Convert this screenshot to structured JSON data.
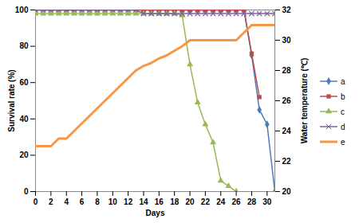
{
  "chart_data": {
    "type": "line",
    "x_label": "Days",
    "y_label": "Survival rate (%)",
    "y2_label": "Water temperature (℃)",
    "x": [
      0,
      1,
      2,
      3,
      4,
      5,
      6,
      7,
      8,
      9,
      10,
      11,
      12,
      13,
      14,
      15,
      16,
      17,
      18,
      19,
      20,
      21,
      22,
      23,
      24,
      25,
      26,
      27,
      28,
      29,
      30,
      31
    ],
    "xlim": [
      0,
      31
    ],
    "xticks": [
      0,
      2,
      4,
      6,
      8,
      10,
      12,
      14,
      16,
      18,
      20,
      22,
      24,
      26,
      28,
      30
    ],
    "ylim": [
      0,
      100
    ],
    "yticks": [
      0,
      20,
      40,
      60,
      80,
      100
    ],
    "y2lim": [
      20,
      32
    ],
    "y2ticks": [
      20,
      22,
      24,
      26,
      28,
      30,
      32
    ],
    "legend": "right",
    "series": [
      {
        "name": "a",
        "color": "#4a7ebb",
        "marker": "diamond",
        "values": [
          100,
          100,
          100,
          100,
          100,
          100,
          100,
          100,
          100,
          100,
          100,
          100,
          100,
          100,
          100,
          100,
          100,
          100,
          100,
          100,
          100,
          100,
          100,
          100,
          100,
          100,
          100,
          100,
          75,
          45,
          37,
          0
        ]
      },
      {
        "name": "b",
        "color": "#be4b48",
        "marker": "square",
        "values": [
          100,
          100,
          100,
          100,
          100,
          100,
          100,
          100,
          100,
          100,
          100,
          100,
          100,
          100,
          100,
          100,
          100,
          100,
          100,
          100,
          100,
          100,
          100,
          100,
          100,
          100,
          100,
          100,
          76,
          52,
          null,
          null
        ]
      },
      {
        "name": "c",
        "color": "#98b954",
        "marker": "triangle",
        "values": [
          98,
          98,
          98,
          98,
          98,
          98,
          98,
          98,
          98,
          98,
          98,
          98,
          98,
          98,
          98,
          98,
          98,
          98,
          98,
          97,
          70,
          49,
          37,
          27,
          6,
          3,
          0,
          null,
          null,
          null,
          null,
          null
        ]
      },
      {
        "name": "d",
        "color": "#7d60a0",
        "marker": "times",
        "values": [
          100,
          100,
          100,
          100,
          100,
          100,
          100,
          100,
          100,
          100,
          100,
          100,
          100,
          100,
          98,
          98,
          98,
          98,
          98,
          98,
          98,
          98,
          98,
          98,
          98,
          98,
          98,
          98,
          98,
          98,
          98,
          98
        ]
      },
      {
        "name": "e",
        "color": "#f79646",
        "axis": "y2",
        "values": [
          23,
          23,
          23,
          23.5,
          23.5,
          24,
          24.5,
          25,
          25.5,
          26,
          26.5,
          27,
          27.5,
          28,
          28.3,
          28.5,
          28.8,
          29,
          29.3,
          29.6,
          30,
          30,
          30,
          30,
          30,
          30,
          30,
          30.5,
          31,
          31,
          31,
          31
        ]
      }
    ]
  }
}
